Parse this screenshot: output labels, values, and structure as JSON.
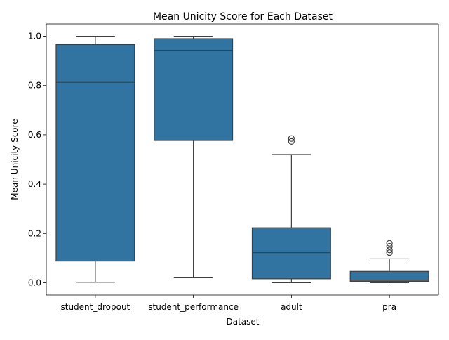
{
  "chart_data": {
    "type": "box",
    "title": "Mean Unicity Score for Each Dataset",
    "xlabel": "Dataset",
    "ylabel": "Mean Unicity Score",
    "ylim": [
      -0.05,
      1.05
    ],
    "yticks": [
      0.0,
      0.2,
      0.4,
      0.6,
      0.8,
      1.0
    ],
    "ytick_labels": [
      "0.0",
      "0.2",
      "0.4",
      "0.6",
      "0.8",
      "1.0"
    ],
    "grid": false,
    "box_color": "#3274a1",
    "line_color": "#3f3f3f",
    "categories": [
      "student_dropout",
      "student_performance",
      "adult",
      "pra"
    ],
    "boxes": [
      {
        "category": "student_dropout",
        "whisker_low": 0.002,
        "q1": 0.088,
        "median": 0.813,
        "q3": 0.966,
        "whisker_high": 1.0,
        "outliers": []
      },
      {
        "category": "student_performance",
        "whisker_low": 0.02,
        "q1": 0.577,
        "median": 0.943,
        "q3": 0.99,
        "whisker_high": 1.0,
        "outliers": []
      },
      {
        "category": "adult",
        "whisker_low": 0.0,
        "q1": 0.016,
        "median": 0.122,
        "q3": 0.223,
        "whisker_high": 0.52,
        "outliers": [
          0.573,
          0.585
        ]
      },
      {
        "category": "pra",
        "whisker_low": 0.0,
        "q1": 0.005,
        "median": 0.011,
        "q3": 0.046,
        "whisker_high": 0.097,
        "outliers": [
          0.122,
          0.133,
          0.148,
          0.16
        ]
      }
    ]
  }
}
